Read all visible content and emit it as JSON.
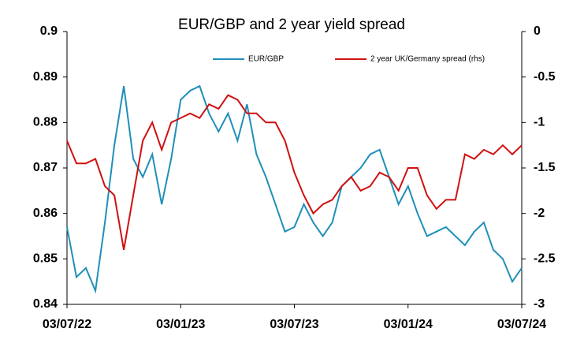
{
  "chart_data": {
    "type": "line",
    "title": "EUR/GBP and 2 year yield spread",
    "categories": [
      "03/07/22",
      null,
      null,
      null,
      null,
      null,
      null,
      null,
      null,
      null,
      null,
      null,
      "03/01/23",
      null,
      null,
      null,
      null,
      null,
      null,
      null,
      null,
      null,
      null,
      null,
      "03/07/23",
      null,
      null,
      null,
      null,
      null,
      null,
      null,
      null,
      null,
      null,
      null,
      "03/01/24",
      null,
      null,
      null,
      null,
      null,
      null,
      null,
      null,
      null,
      null,
      null,
      "03/07/24"
    ],
    "series": [
      {
        "name": "EUR/GBP",
        "color": "#1f8fb8",
        "axis": "y",
        "values": [
          0.857,
          0.846,
          0.848,
          0.843,
          0.858,
          0.875,
          0.888,
          0.872,
          0.868,
          0.873,
          0.862,
          0.872,
          0.885,
          0.887,
          0.888,
          0.882,
          0.878,
          0.882,
          0.876,
          0.884,
          0.873,
          0.868,
          0.862,
          0.856,
          0.857,
          0.862,
          0.858,
          0.855,
          0.858,
          0.866,
          0.868,
          0.87,
          0.873,
          0.874,
          0.868,
          0.862,
          0.866,
          0.86,
          0.855,
          0.856,
          0.857,
          0.855,
          0.853,
          0.856,
          0.858,
          0.852,
          0.85,
          0.845,
          0.848
        ]
      },
      {
        "name": "2 year UK/Germany spread (rhs)",
        "color": "#d01010",
        "axis": "y2",
        "values": [
          -1.2,
          -1.45,
          -1.45,
          -1.4,
          -1.7,
          -1.8,
          -2.4,
          -1.8,
          -1.2,
          -1.0,
          -1.3,
          -1.0,
          -0.95,
          -0.9,
          -0.95,
          -0.8,
          -0.85,
          -0.7,
          -0.75,
          -0.9,
          -0.9,
          -1.0,
          -1.0,
          -1.2,
          -1.55,
          -1.8,
          -2.0,
          -1.9,
          -1.85,
          -1.7,
          -1.6,
          -1.75,
          -1.7,
          -1.55,
          -1.6,
          -1.75,
          -1.5,
          -1.5,
          -1.8,
          -1.95,
          -1.85,
          -1.85,
          -1.35,
          -1.4,
          -1.3,
          -1.35,
          -1.25,
          -1.35,
          -1.25
        ]
      }
    ],
    "ylim": [
      0.84,
      0.9
    ],
    "yticks": [
      0.84,
      0.85,
      0.86,
      0.87,
      0.88,
      0.89,
      0.9
    ],
    "y2lim": [
      -3,
      0
    ],
    "y2ticks": [
      -3,
      -2.5,
      -2,
      -1.5,
      -1,
      -0.5,
      0
    ],
    "grid": false,
    "legend": "top"
  }
}
